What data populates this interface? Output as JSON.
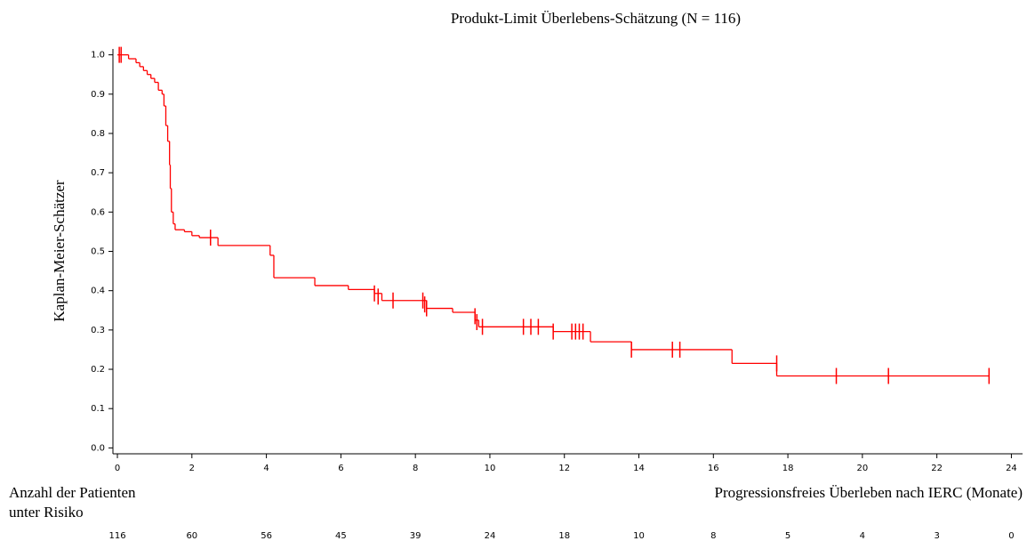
{
  "chart_data": {
    "type": "step",
    "title": "Produkt-Limit Überlebens-Schätzung (N = 116)",
    "y_label": "Kaplan-Meier-Schätzer",
    "x_label": "Progressionsfreies Überleben nach IERC (Monate)",
    "color": "#ff0000",
    "x": [
      0,
      0.3,
      0.5,
      0.6,
      0.7,
      0.8,
      0.9,
      1.0,
      1.1,
      1.2,
      1.25,
      1.3,
      1.35,
      1.4,
      1.42,
      1.45,
      1.5,
      1.55,
      1.8,
      2.0,
      2.2,
      2.7,
      4.1,
      4.2,
      5.3,
      6.2,
      6.9,
      7.1,
      8.3,
      9.0,
      9.6,
      9.7,
      11.7,
      12.7,
      13.8,
      16.5,
      17.7,
      23.4
    ],
    "values": [
      1.0,
      0.99,
      0.98,
      0.97,
      0.96,
      0.95,
      0.94,
      0.93,
      0.91,
      0.9,
      0.87,
      0.82,
      0.78,
      0.72,
      0.66,
      0.6,
      0.57,
      0.555,
      0.55,
      0.54,
      0.535,
      0.515,
      0.49,
      0.433,
      0.413,
      0.403,
      0.393,
      0.375,
      0.355,
      0.345,
      0.325,
      0.308,
      0.296,
      0.27,
      0.25,
      0.215,
      0.183,
      0.183
    ],
    "censor_x": [
      0.05,
      0.1,
      2.5,
      6.9,
      7.0,
      7.4,
      8.2,
      8.25,
      8.3,
      9.6,
      9.65,
      9.8,
      10.9,
      11.1,
      11.3,
      11.7,
      12.2,
      12.3,
      12.4,
      12.5,
      13.8,
      14.9,
      15.1,
      17.7,
      19.3,
      20.7,
      23.4
    ],
    "censor_values": [
      1.0,
      1.0,
      0.535,
      0.393,
      0.385,
      0.375,
      0.375,
      0.365,
      0.355,
      0.335,
      0.32,
      0.308,
      0.308,
      0.308,
      0.308,
      0.296,
      0.296,
      0.296,
      0.296,
      0.296,
      0.25,
      0.25,
      0.25,
      0.215,
      0.183,
      0.183,
      0.183
    ],
    "xlim": [
      -0.12,
      24.3
    ],
    "ylim": [
      -0.015,
      1.015
    ],
    "xticks": [
      0,
      2,
      4,
      6,
      8,
      10,
      12,
      14,
      16,
      18,
      20,
      22,
      24
    ],
    "yticks": [
      {
        "value": 0,
        "label": "0.0"
      },
      0.1,
      0.2,
      0.3,
      0.4,
      0.5,
      0.6,
      0.7,
      0.8,
      0.9,
      {
        "value": 1,
        "label": "1.0"
      }
    ],
    "at_risk_label": [
      "Anzahl der Patienten",
      "unter Risiko"
    ],
    "at_risk": [
      116,
      60,
      56,
      45,
      39,
      24,
      18,
      10,
      8,
      5,
      4,
      3,
      0
    ]
  }
}
